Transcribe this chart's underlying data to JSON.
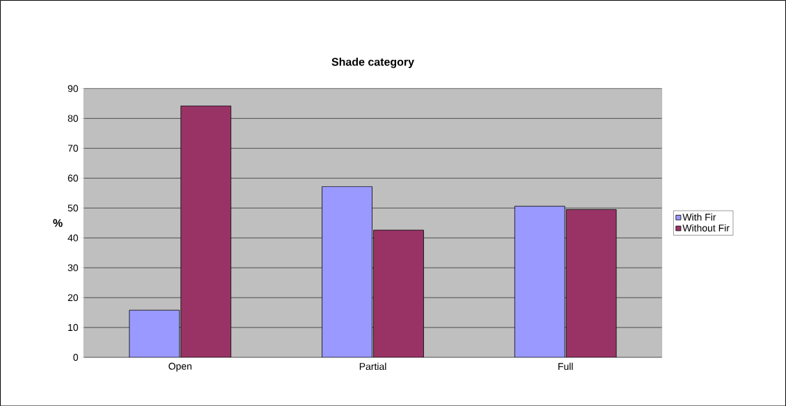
{
  "chart_data": {
    "type": "bar",
    "title": "Shade category",
    "ylabel": "%",
    "categories": [
      "Open",
      "Partial",
      "Full"
    ],
    "series": [
      {
        "name": "With Fir",
        "color": "#9999ff",
        "values": [
          15.8,
          57.2,
          50.6
        ]
      },
      {
        "name": "Without Fir",
        "color": "#993366",
        "values": [
          84.2,
          42.6,
          49.5
        ]
      }
    ],
    "ylim": [
      0,
      90
    ],
    "yticks": [
      0,
      10,
      20,
      30,
      40,
      50,
      60,
      70,
      80,
      90
    ],
    "grid": "y",
    "legend": "right"
  }
}
